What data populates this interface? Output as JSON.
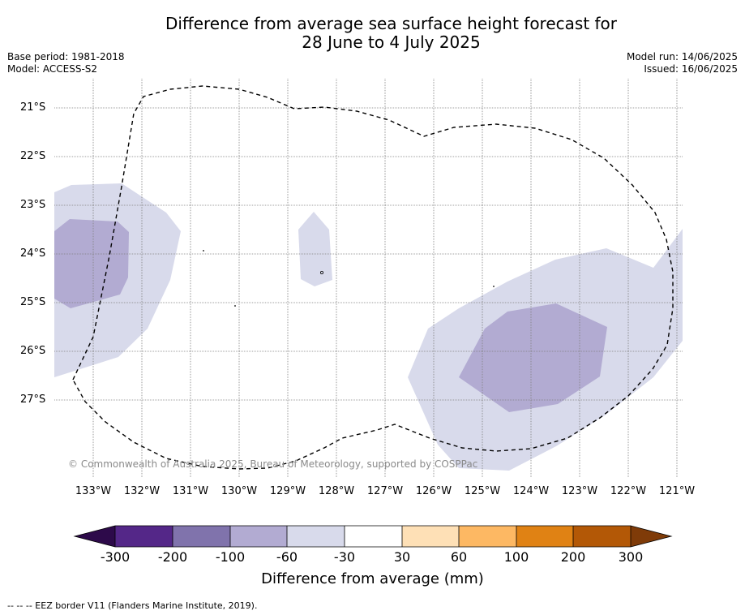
{
  "title_line1": "Difference from average sea surface height forecast for",
  "title_line2": "28 June to 4 July 2025",
  "base_period": "Base period: 1981-2018",
  "model": "Model: ACCESS-S2",
  "model_run": "Model run: 14/06/2025",
  "issued": "Issued: 16/06/2025",
  "lat_labels": [
    "21°S",
    "22°S",
    "23°S",
    "24°S",
    "25°S",
    "26°S",
    "27°S"
  ],
  "lon_labels": [
    "133°W",
    "132°W",
    "131°W",
    "130°W",
    "129°W",
    "128°W",
    "127°W",
    "126°W",
    "125°W",
    "124°W",
    "123°W",
    "122°W",
    "121°W"
  ],
  "copyright": "© Commonwealth of Australia 2025, Bureau of Meteorology, supported by COSPPac",
  "colorbar": {
    "labels": [
      "-300",
      "-200",
      "-100",
      "-60",
      "-30",
      "30",
      "60",
      "100",
      "200",
      "300"
    ],
    "title": "Difference from average (mm)",
    "colors": [
      "#2d0a4a",
      "#542788",
      "#8073ac",
      "#b2abd2",
      "#d8daeb",
      "#ffffff",
      "#fee0b6",
      "#fdb863",
      "#e08214",
      "#b35806",
      "#7f3b08"
    ]
  },
  "footnote": "--  --  -- EEZ border V11 (Flanders Marine Institute, 2019).",
  "colors": {
    "light_purple": "#d8daeb",
    "mid_purple": "#b2abd2",
    "eez_border": "#000000",
    "grid": "#808080"
  }
}
